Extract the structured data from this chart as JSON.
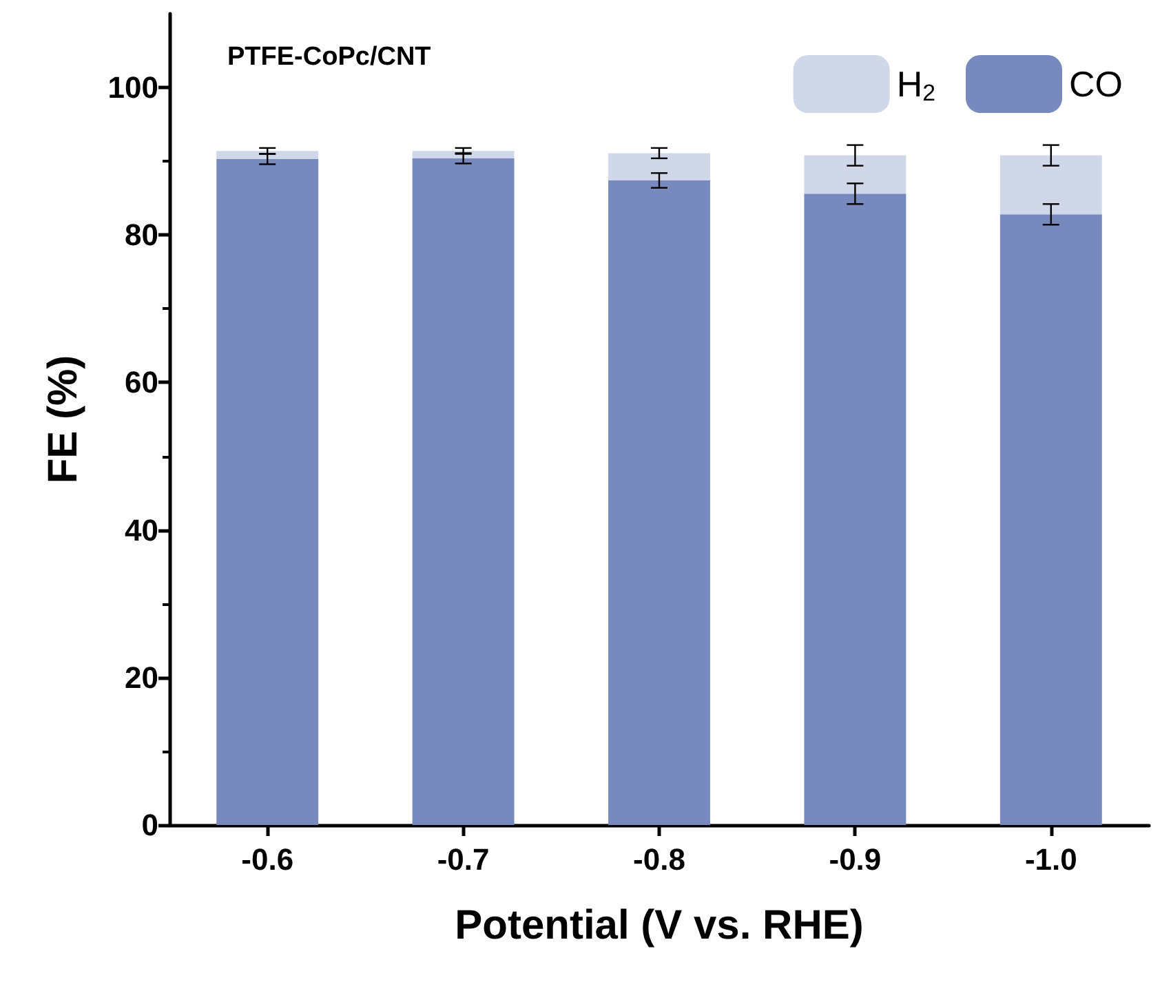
{
  "chart_data": {
    "type": "bar",
    "stacked": true,
    "categories": [
      "-0.6",
      "-0.7",
      "-0.8",
      "-0.9",
      "-1.0"
    ],
    "series": [
      {
        "name": "CO",
        "color": "#7789bd",
        "values": [
          90.3,
          90.4,
          87.4,
          85.6,
          82.8
        ],
        "errors": [
          0.7,
          0.7,
          1.0,
          1.4,
          1.4
        ]
      },
      {
        "name": "H$_{2}$",
        "color": "#d0d7e8",
        "values": [
          1.1,
          1.0,
          3.7,
          5.2,
          8.0
        ],
        "errors": [
          0.4,
          0.4,
          0.7,
          1.4,
          1.4
        ]
      }
    ],
    "xlabel": "Potential (V vs. RHE)",
    "ylabel": "FE (%)",
    "ylim": [
      0,
      110
    ],
    "yticks": [
      0,
      20,
      40,
      60,
      80,
      100
    ],
    "annotations": [
      "PTFE-CoPc/CNT"
    ],
    "legend": "top right",
    "grid": false
  }
}
